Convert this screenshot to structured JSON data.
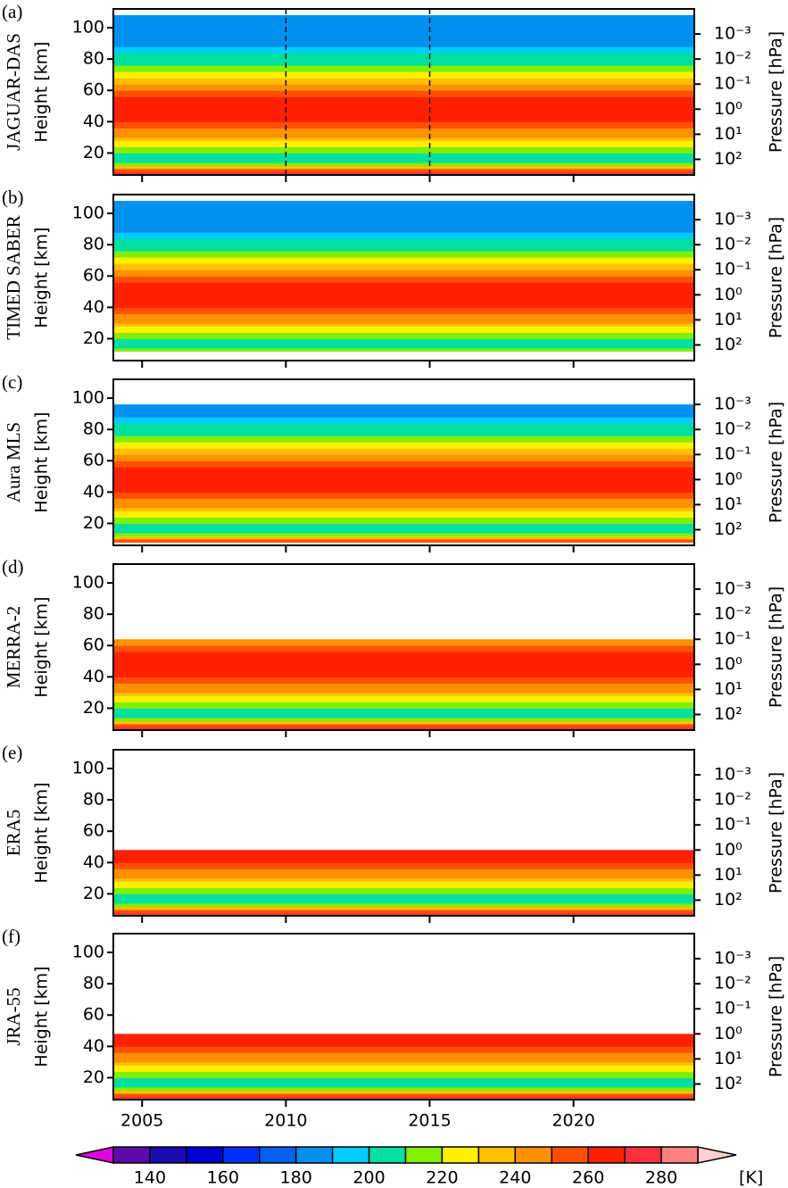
{
  "chart_data": [
    {
      "type": "contour",
      "label": "(a)",
      "title": "JAGUAR-DAS",
      "ylabel": "Height [km]",
      "y2label": "Pressure [hPa]",
      "xlim": [
        2004,
        2024.2
      ],
      "xticks": [
        2005,
        2010,
        2015,
        2020
      ],
      "show_xticklabels": false,
      "ylim": [
        6,
        112
      ],
      "yticks": [
        20,
        40,
        60,
        80,
        100
      ],
      "y2log": true,
      "y2lim": [
        421,
        0.0001
      ],
      "y2ticks": [
        {
          "value": 0.001,
          "label": "10⁻³"
        },
        {
          "value": 0.01,
          "label": "10⁻²"
        },
        {
          "value": 0.1,
          "label": "10⁻¹"
        },
        {
          "value": 1,
          "label": "10⁰"
        },
        {
          "value": 10,
          "label": "10¹"
        },
        {
          "value": 100,
          "label": "10²"
        }
      ],
      "vlines": [
        2010,
        2015
      ],
      "y_bins": [
        6,
        8,
        10,
        12,
        14,
        16,
        18,
        20,
        22,
        24,
        26,
        28,
        30,
        33,
        36,
        40,
        44,
        48,
        52,
        56,
        60,
        64,
        68,
        72,
        76,
        80,
        84,
        88,
        92,
        96,
        100,
        104,
        108
      ],
      "values": [
        275,
        255,
        230,
        215,
        205,
        200,
        205,
        210,
        215,
        222,
        228,
        233,
        240,
        248,
        255,
        262,
        266,
        265,
        262,
        255,
        245,
        235,
        225,
        215,
        205,
        200,
        192,
        188,
        185,
        182,
        180,
        182
      ]
    },
    {
      "type": "contour",
      "label": "(b)",
      "title": "TIMED SABER",
      "ylabel": "Height [km]",
      "y2label": "Pressure [hPa]",
      "xlim": [
        2004,
        2024.2
      ],
      "xticks": [
        2005,
        2010,
        2015,
        2020
      ],
      "show_xticklabels": false,
      "ylim": [
        6,
        112
      ],
      "yticks": [
        20,
        40,
        60,
        80,
        100
      ],
      "y2log": true,
      "y2lim": [
        421,
        0.0001
      ],
      "y2ticks": [
        {
          "value": 0.001,
          "label": "10⁻³"
        },
        {
          "value": 0.01,
          "label": "10⁻²"
        },
        {
          "value": 0.1,
          "label": "10⁻¹"
        },
        {
          "value": 1,
          "label": "10⁰"
        },
        {
          "value": 10,
          "label": "10¹"
        },
        {
          "value": 100,
          "label": "10²"
        }
      ],
      "y_bins": [
        12,
        14,
        16,
        18,
        20,
        22,
        24,
        26,
        28,
        30,
        33,
        36,
        40,
        44,
        48,
        52,
        56,
        60,
        64,
        68,
        72,
        76,
        80,
        84,
        88,
        92,
        96,
        100,
        104,
        108
      ],
      "values": [
        215,
        205,
        200,
        205,
        210,
        215,
        222,
        228,
        233,
        240,
        248,
        255,
        262,
        266,
        265,
        262,
        255,
        245,
        235,
        225,
        215,
        205,
        200,
        192,
        188,
        185,
        182,
        180,
        182
      ]
    },
    {
      "type": "contour",
      "label": "(c)",
      "title": "Aura MLS",
      "ylabel": "Height [km]",
      "y2label": "Pressure [hPa]",
      "xlim": [
        2004,
        2024.2
      ],
      "xticks": [
        2005,
        2010,
        2015,
        2020
      ],
      "show_xticklabels": false,
      "ylim": [
        6,
        112
      ],
      "yticks": [
        20,
        40,
        60,
        80,
        100
      ],
      "y2log": true,
      "y2lim": [
        421,
        0.0001
      ],
      "y2ticks": [
        {
          "value": 0.001,
          "label": "10⁻³"
        },
        {
          "value": 0.01,
          "label": "10⁻²"
        },
        {
          "value": 0.1,
          "label": "10⁻¹"
        },
        {
          "value": 1,
          "label": "10⁰"
        },
        {
          "value": 10,
          "label": "10¹"
        },
        {
          "value": 100,
          "label": "10²"
        }
      ],
      "y_bins": [
        8,
        10,
        12,
        14,
        16,
        18,
        20,
        22,
        24,
        26,
        28,
        30,
        33,
        36,
        40,
        44,
        48,
        52,
        56,
        60,
        64,
        68,
        72,
        76,
        80,
        84,
        88,
        92,
        96
      ],
      "values": [
        255,
        230,
        215,
        205,
        200,
        205,
        210,
        215,
        222,
        228,
        233,
        240,
        248,
        255,
        262,
        266,
        265,
        262,
        255,
        245,
        235,
        225,
        215,
        205,
        200,
        192,
        188,
        185
      ]
    },
    {
      "type": "contour",
      "label": "(d)",
      "title": "MERRA-2",
      "ylabel": "Height [km]",
      "y2label": "Pressure [hPa]",
      "xlim": [
        2004,
        2024.2
      ],
      "xticks": [
        2005,
        2010,
        2015,
        2020
      ],
      "show_xticklabels": false,
      "ylim": [
        6,
        112
      ],
      "yticks": [
        20,
        40,
        60,
        80,
        100
      ],
      "y2log": true,
      "y2lim": [
        421,
        0.0001
      ],
      "y2ticks": [
        {
          "value": 0.001,
          "label": "10⁻³"
        },
        {
          "value": 0.01,
          "label": "10⁻²"
        },
        {
          "value": 0.1,
          "label": "10⁻¹"
        },
        {
          "value": 1,
          "label": "10⁰"
        },
        {
          "value": 10,
          "label": "10¹"
        },
        {
          "value": 100,
          "label": "10²"
        }
      ],
      "y_bins": [
        6,
        8,
        10,
        12,
        14,
        16,
        18,
        20,
        22,
        24,
        26,
        28,
        30,
        33,
        36,
        40,
        44,
        48,
        52,
        56,
        60,
        64
      ],
      "values": [
        275,
        255,
        230,
        215,
        205,
        200,
        205,
        210,
        215,
        222,
        228,
        233,
        240,
        248,
        255,
        262,
        266,
        265,
        262,
        255,
        245
      ]
    },
    {
      "type": "contour",
      "label": "(e)",
      "title": "ERA5",
      "ylabel": "Height [km]",
      "y2label": "Pressure [hPa]",
      "xlim": [
        2004,
        2024.2
      ],
      "xticks": [
        2005,
        2010,
        2015,
        2020
      ],
      "show_xticklabels": false,
      "ylim": [
        6,
        112
      ],
      "yticks": [
        20,
        40,
        60,
        80,
        100
      ],
      "y2log": true,
      "y2lim": [
        421,
        0.0001
      ],
      "y2ticks": [
        {
          "value": 0.001,
          "label": "10⁻³"
        },
        {
          "value": 0.01,
          "label": "10⁻²"
        },
        {
          "value": 0.1,
          "label": "10⁻¹"
        },
        {
          "value": 1,
          "label": "10⁰"
        },
        {
          "value": 10,
          "label": "10¹"
        },
        {
          "value": 100,
          "label": "10²"
        }
      ],
      "y_bins": [
        6,
        8,
        10,
        12,
        14,
        16,
        18,
        20,
        22,
        24,
        26,
        28,
        30,
        33,
        36,
        40,
        44,
        48
      ],
      "values": [
        275,
        255,
        230,
        215,
        205,
        200,
        205,
        210,
        215,
        222,
        228,
        233,
        240,
        248,
        255,
        262,
        266
      ]
    },
    {
      "type": "contour",
      "label": "(f)",
      "title": "JRA-55",
      "ylabel": "Height [km]",
      "y2label": "Pressure [hPa]",
      "xlim": [
        2004,
        2024.2
      ],
      "xticks": [
        2005,
        2010,
        2015,
        2020
      ],
      "show_xticklabels": true,
      "ylim": [
        6,
        112
      ],
      "yticks": [
        20,
        40,
        60,
        80,
        100
      ],
      "y2log": true,
      "y2lim": [
        421,
        0.0001
      ],
      "y2ticks": [
        {
          "value": 0.001,
          "label": "10⁻³"
        },
        {
          "value": 0.01,
          "label": "10⁻²"
        },
        {
          "value": 0.1,
          "label": "10⁻¹"
        },
        {
          "value": 1,
          "label": "10⁰"
        },
        {
          "value": 10,
          "label": "10¹"
        },
        {
          "value": 100,
          "label": "10²"
        }
      ],
      "y_bins": [
        6,
        8,
        10,
        12,
        14,
        16,
        18,
        20,
        22,
        24,
        26,
        28,
        30,
        33,
        36,
        40,
        44,
        48
      ],
      "values": [
        275,
        255,
        230,
        215,
        205,
        200,
        205,
        210,
        215,
        222,
        228,
        233,
        240,
        248,
        255,
        262,
        266
      ]
    },
    {
      "type": "colorbar",
      "label": "[K]",
      "bins": [
        130,
        140,
        150,
        160,
        170,
        180,
        190,
        200,
        210,
        220,
        230,
        240,
        250,
        260,
        270,
        280,
        290
      ],
      "colors": [
        "#5c0aa8",
        "#1a0ab0",
        "#0000d0",
        "#0030ff",
        "#0060f0",
        "#0090f0",
        "#00ccff",
        "#00e0a0",
        "#80f000",
        "#fff000",
        "#ffc000",
        "#ff9000",
        "#ff5000",
        "#ff2000",
        "#ff3040",
        "#ff8080"
      ],
      "under_color": "#e000e0",
      "over_color": "#ffd0d0",
      "ticks": [
        140,
        160,
        180,
        200,
        220,
        240,
        260,
        280
      ]
    }
  ]
}
